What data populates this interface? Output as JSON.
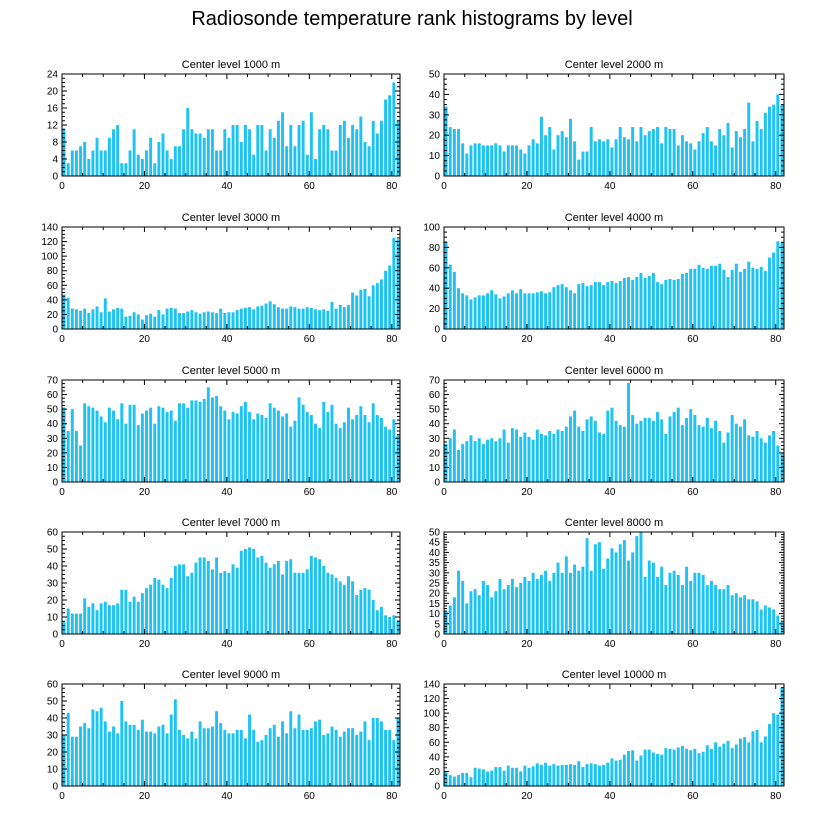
{
  "title": "Radiosonde temperature rank histograms by level",
  "colors": {
    "bar": "#1EC3F5",
    "axis": "#000000"
  },
  "chart_data": [
    {
      "type": "bar",
      "title": "Center level 1000 m",
      "xlim": [
        0,
        82
      ],
      "ylim": [
        0,
        24
      ],
      "xticks": [
        0,
        20,
        40,
        60,
        80
      ],
      "yticks": [
        0,
        4,
        8,
        12,
        16,
        20,
        24
      ],
      "values": [
        11,
        3,
        6,
        6,
        7,
        8,
        4,
        6,
        9,
        6,
        6,
        9,
        11,
        12,
        3,
        3,
        6,
        11,
        5,
        4,
        6,
        9,
        3,
        8,
        10,
        6,
        4,
        7,
        7,
        11,
        16,
        11,
        10,
        10,
        9,
        11,
        11,
        6,
        6,
        11,
        9,
        12,
        12,
        8,
        12,
        11,
        5,
        12,
        12,
        6,
        11,
        9,
        13,
        15,
        7,
        12,
        7,
        12,
        13,
        5,
        15,
        4,
        11,
        12,
        11,
        6,
        6,
        12,
        13,
        9,
        12,
        11,
        14,
        8,
        7,
        13,
        10,
        13,
        18,
        19,
        22,
        13
      ]
    },
    {
      "type": "bar",
      "title": "Center level 2000 m",
      "xlim": [
        0,
        82
      ],
      "ylim": [
        0,
        50
      ],
      "xticks": [
        0,
        20,
        40,
        60,
        80
      ],
      "yticks": [
        0,
        10,
        20,
        30,
        40,
        50
      ],
      "values": [
        34,
        24,
        23,
        23,
        16,
        11,
        15,
        16,
        16,
        15,
        15,
        15,
        16,
        15,
        12,
        15,
        15,
        15,
        13,
        11,
        15,
        18,
        16,
        29,
        20,
        24,
        13,
        20,
        22,
        19,
        28,
        17,
        8,
        12,
        12,
        24,
        17,
        18,
        17,
        18,
        14,
        18,
        24,
        19,
        18,
        24,
        17,
        24,
        20,
        22,
        23,
        24,
        16,
        24,
        23,
        23,
        15,
        20,
        17,
        16,
        13,
        17,
        21,
        24,
        17,
        15,
        23,
        20,
        26,
        14,
        22,
        19,
        23,
        36,
        17,
        27,
        23,
        31,
        34,
        35,
        40,
        35
      ]
    },
    {
      "type": "bar",
      "title": "Center level 3000 m",
      "xlim": [
        0,
        82
      ],
      "ylim": [
        0,
        140
      ],
      "xticks": [
        0,
        20,
        40,
        60,
        80
      ],
      "yticks": [
        0,
        20,
        40,
        60,
        80,
        100,
        120,
        140
      ],
      "values": [
        47,
        43,
        28,
        27,
        25,
        28,
        22,
        27,
        31,
        23,
        42,
        24,
        27,
        29,
        28,
        17,
        18,
        23,
        20,
        13,
        19,
        21,
        17,
        26,
        20,
        28,
        29,
        28,
        22,
        22,
        24,
        26,
        23,
        21,
        23,
        24,
        23,
        22,
        28,
        22,
        23,
        23,
        26,
        28,
        29,
        30,
        27,
        31,
        32,
        35,
        38,
        34,
        30,
        28,
        28,
        31,
        30,
        28,
        28,
        30,
        29,
        27,
        26,
        27,
        25,
        37,
        28,
        33,
        30,
        33,
        50,
        46,
        54,
        55,
        45,
        60,
        63,
        68,
        80,
        87,
        125,
        123
      ]
    },
    {
      "type": "bar",
      "title": "Center level 4000 m",
      "xlim": [
        0,
        82
      ],
      "ylim": [
        0,
        100
      ],
      "xticks": [
        0,
        20,
        40,
        60,
        80
      ],
      "yticks": [
        0,
        20,
        40,
        60,
        80,
        100
      ],
      "values": [
        86,
        63,
        56,
        40,
        35,
        33,
        29,
        31,
        33,
        33,
        35,
        38,
        34,
        30,
        32,
        35,
        38,
        35,
        39,
        35,
        35,
        35,
        36,
        37,
        35,
        36,
        41,
        43,
        44,
        41,
        38,
        35,
        44,
        45,
        42,
        43,
        46,
        46,
        43,
        46,
        47,
        45,
        47,
        50,
        51,
        48,
        51,
        55,
        50,
        52,
        55,
        46,
        44,
        48,
        49,
        48,
        49,
        54,
        55,
        59,
        59,
        63,
        60,
        59,
        62,
        62,
        64,
        58,
        51,
        58,
        64,
        56,
        59,
        66,
        60,
        59,
        61,
        57,
        70,
        75,
        86,
        85
      ]
    },
    {
      "type": "bar",
      "title": "Center level 5000 m",
      "xlim": [
        0,
        82
      ],
      "ylim": [
        0,
        70
      ],
      "xticks": [
        0,
        20,
        40,
        60,
        80
      ],
      "yticks": [
        0,
        10,
        20,
        30,
        40,
        50,
        60,
        70
      ],
      "values": [
        51,
        35,
        50,
        35,
        25,
        54,
        52,
        51,
        49,
        45,
        41,
        51,
        49,
        43,
        54,
        40,
        53,
        53,
        39,
        47,
        49,
        51,
        40,
        52,
        51,
        48,
        49,
        42,
        54,
        54,
        51,
        56,
        56,
        55,
        57,
        65,
        58,
        59,
        52,
        49,
        43,
        48,
        47,
        52,
        55,
        48,
        43,
        47,
        46,
        44,
        54,
        51,
        49,
        45,
        47,
        38,
        42,
        58,
        53,
        48,
        46,
        40,
        37,
        55,
        48,
        53,
        40,
        37,
        41,
        51,
        43,
        46,
        52,
        46,
        41,
        54,
        46,
        44,
        38,
        36,
        43,
        32
      ]
    },
    {
      "type": "bar",
      "title": "Center level 6000 m",
      "xlim": [
        0,
        82
      ],
      "ylim": [
        0,
        70
      ],
      "xticks": [
        0,
        20,
        40,
        60,
        80
      ],
      "yticks": [
        0,
        10,
        20,
        30,
        40,
        50,
        60,
        70
      ],
      "values": [
        26,
        30,
        36,
        22,
        26,
        28,
        32,
        28,
        30,
        26,
        29,
        30,
        28,
        30,
        36,
        27,
        37,
        36,
        31,
        34,
        31,
        29,
        36,
        33,
        32,
        35,
        33,
        36,
        35,
        38,
        45,
        49,
        38,
        35,
        43,
        45,
        42,
        34,
        33,
        49,
        51,
        42,
        39,
        38,
        68,
        46,
        40,
        42,
        44,
        44,
        42,
        48,
        43,
        33,
        45,
        48,
        51,
        39,
        44,
        50,
        46,
        39,
        38,
        44,
        37,
        42,
        35,
        27,
        34,
        46,
        40,
        38,
        43,
        32,
        31,
        35,
        30,
        27,
        32,
        35,
        25,
        20
      ]
    },
    {
      "type": "bar",
      "title": "Center level 7000 m",
      "xlim": [
        0,
        82
      ],
      "ylim": [
        0,
        60
      ],
      "xticks": [
        0,
        20,
        40,
        60,
        80
      ],
      "yticks": [
        0,
        10,
        20,
        30,
        40,
        50,
        60
      ],
      "values": [
        7,
        15,
        12,
        12,
        12,
        21,
        16,
        18,
        14,
        18,
        19,
        17,
        17,
        18,
        26,
        26,
        19,
        22,
        19,
        24,
        27,
        29,
        33,
        32,
        29,
        27,
        33,
        40,
        41,
        41,
        34,
        36,
        42,
        45,
        45,
        43,
        38,
        45,
        36,
        37,
        36,
        41,
        39,
        49,
        50,
        51,
        50,
        45,
        46,
        42,
        39,
        41,
        43,
        35,
        43,
        44,
        36,
        36,
        36,
        38,
        46,
        45,
        44,
        40,
        36,
        35,
        33,
        31,
        29,
        34,
        31,
        23,
        26,
        27,
        26,
        20,
        14,
        16,
        11,
        10,
        11,
        8
      ]
    },
    {
      "type": "bar",
      "title": "Center level 8000 m",
      "xlim": [
        0,
        82
      ],
      "ylim": [
        0,
        50
      ],
      "xticks": [
        0,
        20,
        40,
        60,
        80
      ],
      "yticks": [
        0,
        5,
        10,
        15,
        20,
        25,
        30,
        35,
        40,
        45,
        50
      ],
      "values": [
        11,
        14,
        18,
        31,
        26,
        15,
        21,
        22,
        19,
        26,
        24,
        18,
        21,
        27,
        22,
        24,
        27,
        23,
        25,
        28,
        26,
        30,
        27,
        29,
        31,
        26,
        30,
        35,
        30,
        38,
        30,
        34,
        31,
        33,
        47,
        31,
        44,
        45,
        32,
        37,
        42,
        40,
        44,
        46,
        36,
        40,
        48,
        50,
        28,
        36,
        35,
        28,
        33,
        24,
        30,
        31,
        29,
        24,
        33,
        26,
        30,
        30,
        29,
        24,
        26,
        24,
        22,
        22,
        24,
        19,
        20,
        18,
        19,
        17,
        17,
        16,
        12,
        14,
        13,
        12,
        9,
        6
      ]
    },
    {
      "type": "bar",
      "title": "Center level 9000 m",
      "xlim": [
        0,
        82
      ],
      "ylim": [
        0,
        60
      ],
      "xticks": [
        0,
        20,
        40,
        60,
        80
      ],
      "yticks": [
        0,
        10,
        20,
        30,
        40,
        50,
        60
      ],
      "values": [
        30,
        43,
        29,
        29,
        35,
        37,
        34,
        45,
        44,
        46,
        38,
        32,
        35,
        31,
        50,
        38,
        36,
        36,
        33,
        39,
        32,
        32,
        31,
        35,
        36,
        31,
        42,
        51,
        33,
        30,
        28,
        32,
        28,
        38,
        34,
        34,
        35,
        44,
        37,
        33,
        31,
        31,
        33,
        33,
        28,
        42,
        33,
        26,
        27,
        30,
        34,
        36,
        29,
        38,
        31,
        44,
        34,
        42,
        33,
        33,
        34,
        38,
        39,
        30,
        31,
        35,
        33,
        29,
        32,
        34,
        34,
        30,
        32,
        38,
        27,
        40,
        40,
        38,
        33,
        33,
        27,
        40
      ]
    },
    {
      "type": "bar",
      "title": "Center level 10000 m",
      "xlim": [
        0,
        82
      ],
      "ylim": [
        0,
        140
      ],
      "xticks": [
        0,
        20,
        40,
        60,
        80
      ],
      "yticks": [
        0,
        20,
        40,
        60,
        80,
        100,
        120,
        140
      ],
      "values": [
        20,
        15,
        13,
        15,
        18,
        18,
        12,
        25,
        24,
        23,
        20,
        21,
        26,
        26,
        21,
        28,
        25,
        25,
        20,
        28,
        25,
        27,
        31,
        29,
        32,
        28,
        30,
        28,
        29,
        29,
        30,
        29,
        34,
        26,
        30,
        31,
        30,
        28,
        29,
        32,
        38,
        35,
        36,
        43,
        48,
        49,
        35,
        42,
        50,
        50,
        46,
        44,
        43,
        52,
        51,
        50,
        53,
        55,
        51,
        49,
        51,
        45,
        47,
        56,
        51,
        60,
        54,
        58,
        62,
        52,
        57,
        65,
        67,
        60,
        75,
        77,
        60,
        68,
        85,
        100,
        98,
        135
      ]
    }
  ]
}
